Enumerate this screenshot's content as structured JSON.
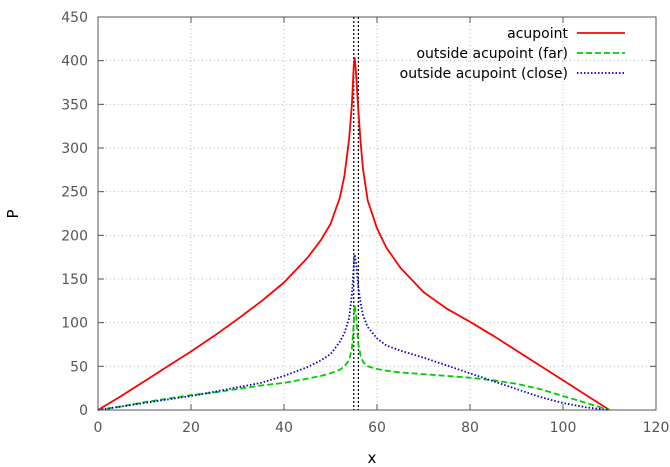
{
  "chart_data": {
    "type": "line",
    "title": "",
    "xlabel": "x",
    "ylabel": "P",
    "xlim": [
      0,
      120
    ],
    "ylim": [
      0,
      450
    ],
    "xticks": [
      "0",
      "20",
      "40",
      "60",
      "80",
      "100",
      "120"
    ],
    "yticks": [
      "0",
      "50",
      "100",
      "150",
      "200",
      "250",
      "300",
      "350",
      "400",
      "450"
    ],
    "grid": true,
    "legend_position": "top-right",
    "vertical_reference_lines": [
      55,
      56
    ],
    "series": [
      {
        "name": "acupoint",
        "color": "#ff0000",
        "dash": "solid",
        "x": [
          0,
          5,
          10,
          15,
          20,
          25,
          30,
          35,
          40,
          45,
          48,
          50,
          52,
          53,
          54,
          54.6,
          55,
          55.2,
          55.5,
          56,
          56.5,
          57,
          58,
          60,
          62,
          65,
          70,
          75,
          80,
          85,
          90,
          95,
          100,
          105,
          110
        ],
        "y": [
          0,
          16,
          33,
          50,
          67,
          85,
          104,
          124,
          146,
          174,
          195,
          213,
          243,
          268,
          310,
          350,
          395,
          403,
          385,
          342,
          305,
          275,
          240,
          208,
          186,
          163,
          135,
          116,
          101,
          85,
          68,
          51,
          34,
          17,
          0
        ]
      },
      {
        "name": "outside acupoint (far)",
        "color": "#00cc00",
        "dash": "dashed",
        "x": [
          0,
          5,
          10,
          15,
          20,
          25,
          30,
          35,
          40,
          45,
          48,
          50,
          52,
          53,
          54,
          54.6,
          55,
          55.2,
          55.5,
          56,
          56.5,
          57,
          58,
          60,
          62,
          65,
          70,
          75,
          80,
          85,
          90,
          95,
          100,
          105,
          110
        ],
        "y": [
          0,
          4,
          9,
          13,
          17,
          20,
          24,
          28,
          31,
          36,
          39,
          42,
          46,
          50,
          57,
          70,
          100,
          120,
          108,
          75,
          62,
          55,
          50,
          47,
          45,
          43,
          41,
          39,
          37,
          34,
          30,
          24,
          16,
          8,
          0
        ]
      },
      {
        "name": "outside acupoint (close)",
        "color": "#0000cc",
        "dash": "dotted",
        "x": [
          0,
          5,
          10,
          15,
          20,
          25,
          30,
          35,
          40,
          45,
          48,
          50,
          52,
          53,
          54,
          54.6,
          55,
          55.2,
          55.5,
          56,
          56.5,
          57,
          58,
          60,
          62,
          65,
          70,
          75,
          80,
          85,
          90,
          95,
          100,
          105,
          110
        ],
        "y": [
          0,
          4,
          8,
          12,
          16,
          21,
          26,
          31,
          39,
          49,
          57,
          64,
          78,
          88,
          105,
          132,
          165,
          178,
          168,
          140,
          122,
          108,
          95,
          82,
          74,
          68,
          60,
          51,
          42,
          33,
          24,
          15,
          8,
          3,
          0
        ]
      }
    ]
  }
}
